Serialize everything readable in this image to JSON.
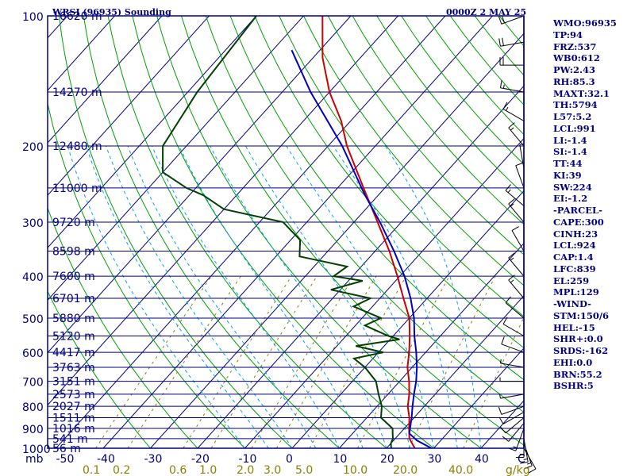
{
  "chart_data": {
    "type": "skew-t sounding",
    "title": "WRSI (96935) Sounding",
    "datetime": "0000Z  2 MAY 25",
    "pressure_levels": [
      {
        "p": 100,
        "label": "100",
        "height": "16620 m"
      },
      {
        "p": 150,
        "label": "",
        "height": "14270 m"
      },
      {
        "p": 200,
        "label": "200",
        "height": "12480 m"
      },
      {
        "p": 250,
        "label": "",
        "height": "11000 m"
      },
      {
        "p": 300,
        "label": "300",
        "height": "9720 m"
      },
      {
        "p": 350,
        "label": "",
        "height": "8598 m"
      },
      {
        "p": 400,
        "label": "400",
        "height": "7600 m"
      },
      {
        "p": 450,
        "label": "",
        "height": "6701 m"
      },
      {
        "p": 500,
        "label": "500",
        "height": "5880 m"
      },
      {
        "p": 550,
        "label": "",
        "height": "5120 m"
      },
      {
        "p": 600,
        "label": "600",
        "height": "4417 m"
      },
      {
        "p": 650,
        "label": "",
        "height": "3763 m"
      },
      {
        "p": 700,
        "label": "700",
        "height": "3151 m"
      },
      {
        "p": 750,
        "label": "",
        "height": "2573 m"
      },
      {
        "p": 800,
        "label": "800",
        "height": "2027 m"
      },
      {
        "p": 850,
        "label": "",
        "height": "1511 m"
      },
      {
        "p": 900,
        "label": "900",
        "height": "1016 m"
      },
      {
        "p": 950,
        "label": "",
        "height": "541 m"
      },
      {
        "p": 1000,
        "label": "1000",
        "height": "56 m"
      }
    ],
    "pressure_axis_unit": "mb",
    "temp_ticks": [
      -50,
      -40,
      -30,
      -20,
      -10,
      0,
      10,
      20,
      30,
      40
    ],
    "temp_tick_labels": [
      "-50",
      "-40",
      "-30",
      "-20",
      "-10",
      "0",
      "10",
      "20",
      "30",
      "40"
    ],
    "temp_axis_unit": "C",
    "mixing_ratio_values": [
      0.1,
      0.2,
      0.6,
      1.0,
      2.0,
      3.0,
      5.0,
      10.0,
      20.0,
      40.0
    ],
    "mixing_ratio_labels": [
      "0.1",
      "0.2",
      "0.6",
      "1.0",
      "2.0",
      "3.0",
      "5.0",
      "10.0",
      "20.0",
      "40.0"
    ],
    "mixing_ratio_unit": "g/kg",
    "temperature_profile": [
      [
        1000,
        26
      ],
      [
        975,
        24.5
      ],
      [
        950,
        23
      ],
      [
        925,
        22
      ],
      [
        900,
        21
      ],
      [
        850,
        19
      ],
      [
        800,
        16.5
      ],
      [
        750,
        14.5
      ],
      [
        700,
        12
      ],
      [
        650,
        9
      ],
      [
        600,
        6.5
      ],
      [
        550,
        3.5
      ],
      [
        500,
        0
      ],
      [
        450,
        -5
      ],
      [
        400,
        -10.5
      ],
      [
        350,
        -17
      ],
      [
        300,
        -25
      ],
      [
        250,
        -34.5
      ],
      [
        200,
        -46
      ],
      [
        175,
        -52
      ],
      [
        150,
        -60
      ],
      [
        125,
        -68
      ],
      [
        100,
        -76
      ]
    ],
    "dewpoint_profile": [
      [
        1000,
        21
      ],
      [
        975,
        20
      ],
      [
        950,
        19.5
      ],
      [
        925,
        18.5
      ],
      [
        900,
        17.5
      ],
      [
        850,
        13
      ],
      [
        800,
        11
      ],
      [
        750,
        8
      ],
      [
        700,
        5
      ],
      [
        650,
        0
      ],
      [
        620,
        -4
      ],
      [
        600,
        1
      ],
      [
        580,
        -6
      ],
      [
        560,
        2
      ],
      [
        550,
        -1
      ],
      [
        520,
        -8
      ],
      [
        500,
        -6
      ],
      [
        470,
        -14
      ],
      [
        450,
        -12
      ],
      [
        430,
        -22
      ],
      [
        410,
        -17
      ],
      [
        400,
        -24
      ],
      [
        380,
        -23
      ],
      [
        360,
        -35
      ],
      [
        330,
        -38
      ],
      [
        300,
        -45
      ],
      [
        280,
        -60
      ],
      [
        260,
        -67
      ],
      [
        250,
        -72
      ],
      [
        230,
        -80
      ],
      [
        200,
        -85
      ],
      [
        150,
        -88
      ],
      [
        100,
        -90
      ]
    ],
    "parcel_profile": [
      [
        1000,
        29.5
      ],
      [
        960,
        25
      ],
      [
        924,
        22
      ],
      [
        900,
        21.2
      ],
      [
        850,
        19.5
      ],
      [
        800,
        17.5
      ],
      [
        750,
        15.5
      ],
      [
        700,
        13.5
      ],
      [
        650,
        11
      ],
      [
        600,
        8
      ],
      [
        550,
        4.5
      ],
      [
        500,
        1
      ],
      [
        450,
        -3.5
      ],
      [
        400,
        -9
      ],
      [
        350,
        -16
      ],
      [
        300,
        -24.5
      ],
      [
        259,
        -33
      ],
      [
        200,
        -47
      ],
      [
        150,
        -64
      ],
      [
        120,
        -76
      ]
    ],
    "wind_barbs": [
      {
        "p": 1000,
        "dir": 150,
        "spd": 10
      },
      {
        "p": 975,
        "dir": 160,
        "spd": 15
      },
      {
        "p": 950,
        "dir": 170,
        "spd": 15
      },
      {
        "p": 925,
        "dir": 180,
        "spd": 15
      },
      {
        "p": 900,
        "dir": 200,
        "spd": 15
      },
      {
        "p": 875,
        "dir": 220,
        "spd": 10
      },
      {
        "p": 850,
        "dir": 230,
        "spd": 10
      },
      {
        "p": 825,
        "dir": 240,
        "spd": 10
      },
      {
        "p": 800,
        "dir": 250,
        "spd": 10
      },
      {
        "p": 750,
        "dir": 260,
        "spd": 5
      },
      {
        "p": 700,
        "dir": 270,
        "spd": 5
      },
      {
        "p": 650,
        "dir": 280,
        "spd": 5
      },
      {
        "p": 600,
        "dir": 290,
        "spd": 10
      },
      {
        "p": 550,
        "dir": 300,
        "spd": 10
      },
      {
        "p": 500,
        "dir": 310,
        "spd": 10
      },
      {
        "p": 450,
        "dir": 320,
        "spd": 15
      },
      {
        "p": 400,
        "dir": 320,
        "spd": 15
      },
      {
        "p": 350,
        "dir": 330,
        "spd": 10
      },
      {
        "p": 300,
        "dir": 320,
        "spd": 15
      },
      {
        "p": 275,
        "dir": 310,
        "spd": 15
      },
      {
        "p": 250,
        "dir": 340,
        "spd": 10
      },
      {
        "p": 225,
        "dir": 350,
        "spd": 5
      },
      {
        "p": 200,
        "dir": 320,
        "spd": 15
      },
      {
        "p": 175,
        "dir": 300,
        "spd": 15
      },
      {
        "p": 150,
        "dir": 280,
        "spd": 15
      },
      {
        "p": 130,
        "dir": 270,
        "spd": 20
      },
      {
        "p": 115,
        "dir": 260,
        "spd": 20
      },
      {
        "p": 100,
        "dir": 250,
        "spd": 20
      }
    ],
    "colors": {
      "axes": "#000080",
      "dry_adiabat": "#00a000",
      "moist_adiabat": "#00a0ff",
      "mixing_ratio": "#8b8000",
      "temperature": "#cc0000",
      "dewpoint": "#004000",
      "parcel": "#0000c0"
    }
  },
  "indices": [
    "WMO:96935",
    "TP:94",
    "FRZ:537",
    "WB0:612",
    "PW:2.43",
    "RH:85.3",
    "MAXT:32.1",
    "TH:5794",
    "L57:5.2",
    "LCL:991",
    "LI:-1.4",
    "SI:-1.4",
    "TT:44",
    "KI:39",
    "SW:224",
    "EI:-1.2",
    "-PARCEL-",
    "CAPE:300",
    "CINH:23",
    "LCL:924",
    "CAP:1.4",
    "LFC:839",
    "EL:259",
    "MPL:129",
    "-WIND-",
    "STM:150/6",
    "HEL:-15",
    "SHR+:0.0",
    "SRDS:-162",
    "EHI:0.0",
    "BRN:55.2",
    "BSHR:5"
  ]
}
